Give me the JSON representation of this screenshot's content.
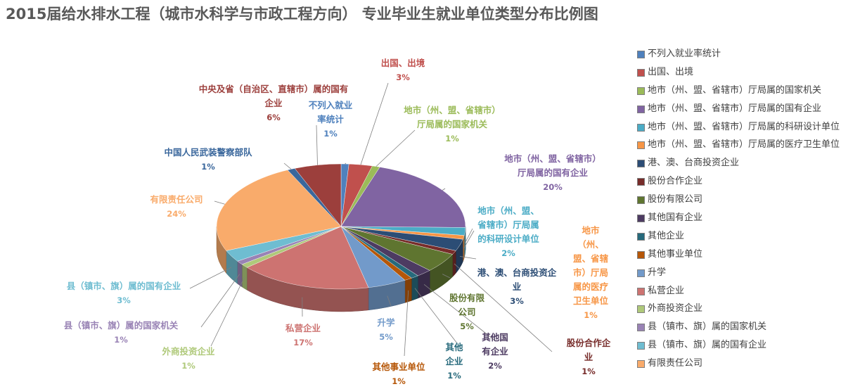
{
  "chart_data": {
    "type": "pie",
    "title": "2015届给水排水工程（城市水科学与市政工程方向） 专业毕业生就业单位类型分布比例图",
    "slices": [
      {
        "name": "不列入就业率统计",
        "value": 1,
        "label": "1%",
        "color": "#4f81bd"
      },
      {
        "name": "出国、出境",
        "value": 3,
        "label": "3%",
        "color": "#c0504d"
      },
      {
        "name": "地市（州、盟、省辖市）厅局属的国家机关",
        "value": 1,
        "label": "1%",
        "color": "#9bbb59"
      },
      {
        "name": "地市（州、盟、省辖市）厅局属的国有企业",
        "value": 20,
        "label": "20%",
        "color": "#8064a2"
      },
      {
        "name": "地市（州、盟、省辖市）厅局属的科研设计单位",
        "value": 2,
        "label": "2%",
        "color": "#4bacc6"
      },
      {
        "name": "地市（州、盟、省辖市）厅局属的医疗卫生单位",
        "value": 1,
        "label": "1%",
        "color": "#f79646"
      },
      {
        "name": "港、澳、台商投资企业",
        "value": 3,
        "label": "3%",
        "color": "#2c4d75"
      },
      {
        "name": "股份合作企业",
        "value": 1,
        "label": "1%",
        "color": "#772c2a"
      },
      {
        "name": "股份有限公司",
        "value": 5,
        "label": "5%",
        "color": "#5f7530"
      },
      {
        "name": "其他国有企业",
        "value": 2,
        "label": "2%",
        "color": "#4d3b62"
      },
      {
        "name": "其他企业",
        "value": 1,
        "label": "1%",
        "color": "#276a7c"
      },
      {
        "name": "其他事业单位",
        "value": 1,
        "label": "1%",
        "color": "#b65708"
      },
      {
        "name": "升学",
        "value": 5,
        "label": "5%",
        "color": "#729aca"
      },
      {
        "name": "私营企业",
        "value": 17,
        "label": "17%",
        "color": "#cd7371"
      },
      {
        "name": "外商投资企业",
        "value": 1,
        "label": "1%",
        "color": "#afc97a"
      },
      {
        "name": "县（镇市、旗）属的国家机关",
        "value": 1,
        "label": "1%",
        "color": "#9983b5"
      },
      {
        "name": "县（镇市、旗）属的国有企业",
        "value": 3,
        "label": "3%",
        "color": "#6fbdd1"
      },
      {
        "name": "有限责任公司",
        "value": 24,
        "label": "24%",
        "color": "#f9ab6b"
      },
      {
        "name": "中国人民武装警察部队",
        "value": 1,
        "label": "1%",
        "color": "#3a679c"
      },
      {
        "name": "中央及省（自治区、直辖市）属的国有企业",
        "value": 6,
        "label": "6%",
        "color": "#9c3f3c"
      }
    ],
    "data_labels": [
      {
        "lines": [
          "不列入就业",
          "率统计"
        ],
        "pct": "1%",
        "color": "#4f81bd"
      },
      {
        "lines": [
          "出国、出境"
        ],
        "pct": "3%",
        "color": "#c0504d"
      },
      {
        "lines": [
          "地市（州、盟、省辖市）",
          "厅局属的国家机关"
        ],
        "pct": "1%",
        "color": "#9bbb59"
      },
      {
        "lines": [
          "地市（州、盟、省辖市）",
          "厅局属的国有企业"
        ],
        "pct": "20%",
        "color": "#8064a2"
      },
      {
        "lines": [
          "地市（州、盟、",
          "省辖市）厅局属",
          "的科研设计单位"
        ],
        "pct": "2%",
        "color": "#4bacc6"
      },
      {
        "lines": [
          "地市",
          "（州、",
          "盟、省辖",
          "市）厅局",
          "属的医疗",
          "卫生单位"
        ],
        "pct": "1%",
        "color": "#f79646"
      },
      {
        "lines": [
          "港、澳、台商投资企",
          "业"
        ],
        "pct": "3%",
        "color": "#2c4d75"
      },
      {
        "lines": [
          "股份合作企",
          "业"
        ],
        "pct": "1%",
        "color": "#772c2a"
      },
      {
        "lines": [
          "股份有限",
          "公司"
        ],
        "pct": "5%",
        "color": "#5f7530"
      },
      {
        "lines": [
          "其他国",
          "有企业"
        ],
        "pct": "2%",
        "color": "#4d3b62"
      },
      {
        "lines": [
          "其他",
          "企业"
        ],
        "pct": "1%",
        "color": "#276a7c"
      },
      {
        "lines": [
          "其他事业单位"
        ],
        "pct": "1%",
        "color": "#b65708"
      },
      {
        "lines": [
          "升学"
        ],
        "pct": "5%",
        "color": "#729aca"
      },
      {
        "lines": [
          "私营企业"
        ],
        "pct": "17%",
        "color": "#cd7371"
      },
      {
        "lines": [
          "外商投资企业"
        ],
        "pct": "1%",
        "color": "#afc97a"
      },
      {
        "lines": [
          "县（镇市、旗）属的国家机关"
        ],
        "pct": "1%",
        "color": "#9983b5"
      },
      {
        "lines": [
          "县（镇市、旗）属的国有企业"
        ],
        "pct": "3%",
        "color": "#6fbdd1"
      },
      {
        "lines": [
          "有限责任公司"
        ],
        "pct": "24%",
        "color": "#f9ab6b"
      },
      {
        "lines": [
          "中国人民武装警察部队"
        ],
        "pct": "1%",
        "color": "#3a679c"
      },
      {
        "lines": [
          "中央及省（自治区、直辖市）属的国有",
          "企业"
        ],
        "pct": "6%",
        "color": "#9c3f3c"
      }
    ],
    "legend": {
      "position": "right",
      "entries": [
        "不列入就业率统计",
        "出国、出境",
        "地市（州、盟、省辖市）厅局属的国家机关",
        "地市（州、盟、省辖市）厅局属的国有企业",
        "地市（州、盟、省辖市）厅局属的科研设计单位",
        "地市（州、盟、省辖市）厅局属的医疗卫生单位",
        "港、澳、台商投资企业",
        "股份合作企业",
        "股份有限公司",
        "其他国有企业",
        "其他企业",
        "其他事业单位",
        "升学",
        "私营企业",
        "外商投资企业",
        "县（镇市、旗）属的国家机关",
        "县（镇市、旗）属的国有企业",
        "有限责任公司"
      ]
    },
    "style": "3d-pie"
  }
}
